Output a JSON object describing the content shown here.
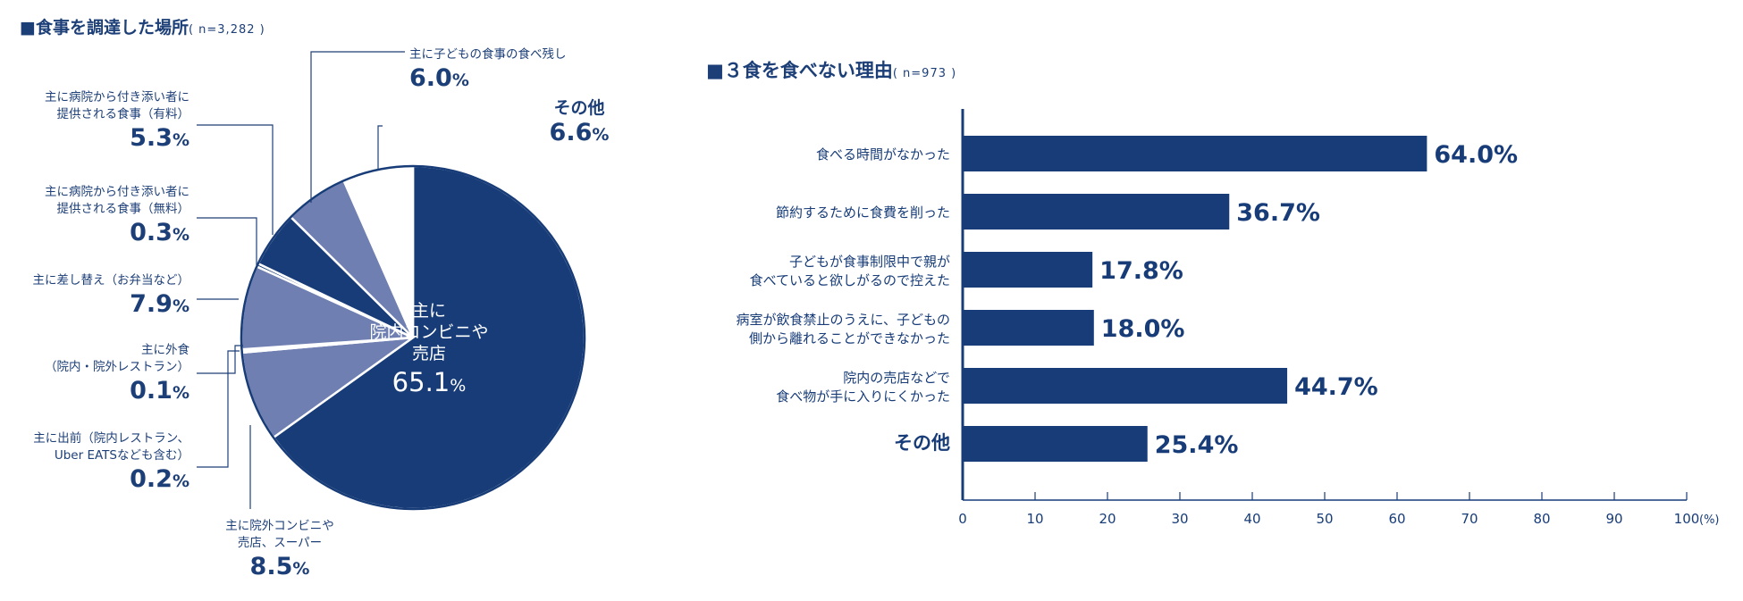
{
  "pie_title": "■食事を調達した場所",
  "pie_n": "( n=3,282 )",
  "bar_title": "■３食を食べない理由",
  "bar_n": "( n=973 )",
  "colors": {
    "dark": "#173c78",
    "mid": "#6f7fb2",
    "white": "#ffffff",
    "text": "#1d3f78"
  },
  "chart_data": [
    {
      "type": "pie",
      "slices": [
        {
          "label": "主に院内コンビニや売店",
          "value": 65.1,
          "pct_text": "65.1%",
          "color": "#173c78"
        },
        {
          "label": "主に院外コンビニや売店、スーパー",
          "value": 8.5,
          "pct_text": "8.5%",
          "color": "#6f7fb2"
        },
        {
          "label": "主に出前（院内レストラン、Uber EATSなども含む）",
          "value": 0.2,
          "pct_text": "0.2%",
          "color": "#173c78"
        },
        {
          "label": "主に外食（院内・院外レストラン）",
          "value": 0.1,
          "pct_text": "0.1%",
          "color": "#6f7fb2"
        },
        {
          "label": "主に差し替え（お弁当など）",
          "value": 7.9,
          "pct_text": "7.9%",
          "color": "#6f7fb2"
        },
        {
          "label": "主に病院から付き添い者に提供される食事（無料）",
          "value": 0.3,
          "pct_text": "0.3%",
          "color": "#173c78"
        },
        {
          "label": "主に病院から付き添い者に提供される食事（有料）",
          "value": 5.3,
          "pct_text": "5.3%",
          "color": "#173c78"
        },
        {
          "label": "主に子どもの食事の食べ残し",
          "value": 6.0,
          "pct_text": "6.0%",
          "color": "#6f7fb2"
        },
        {
          "label": "その他",
          "value": 6.6,
          "pct_text": "6.6%",
          "color": "#ffffff"
        }
      ]
    },
    {
      "type": "bar",
      "orientation": "horizontal",
      "categories": [
        "食べる時間がなかった",
        "節約するために食費を削った",
        "子どもが食事制限中で親が食べていると欲しがるので控えた",
        "病室が飲食禁止のうえに、子どもの側から離れることができなかった",
        "院内の売店などで食べ物が手に入りにくかった",
        "その他"
      ],
      "values": [
        64.0,
        36.7,
        17.8,
        18.0,
        44.7,
        25.4
      ],
      "xlim": [
        0,
        100
      ],
      "xticks": [
        "0",
        "10",
        "20",
        "30",
        "40",
        "50",
        "60",
        "70",
        "80",
        "90",
        "100"
      ],
      "xunit": "(%)",
      "color": "#173c78"
    }
  ],
  "pie_labels": {
    "main": {
      "line1": "主に",
      "line2": "院内コンビニや",
      "line3": "売店",
      "pct": "65.1",
      "unit": "%"
    },
    "outside": {
      "line1": "主に院外コンビニや",
      "line2": "売店、スーパー",
      "pct": "8.5",
      "unit": "%"
    },
    "delivery": {
      "line1": "主に出前（院内レストラン、",
      "line2": "Uber EATSなども含む）",
      "pct": "0.2",
      "unit": "%"
    },
    "eatout": {
      "line1": "主に外食",
      "line2": "（院内・院外レストラン）",
      "pct": "0.1",
      "unit": "%"
    },
    "replace": {
      "line1": "主に差し替え（お弁当など）",
      "pct": "7.9",
      "unit": "%"
    },
    "free": {
      "line1": "主に病院から付き添い者に",
      "line2": "提供される食事（無料）",
      "pct": "0.3",
      "unit": "%"
    },
    "paid": {
      "line1": "主に病院から付き添い者に",
      "line2": "提供される食事（有料）",
      "pct": "5.3",
      "unit": "%"
    },
    "leftover": {
      "line1": "主に子どもの食事の食べ残し",
      "pct": "6.0",
      "unit": "%"
    },
    "other": {
      "line1": "その他",
      "pct": "6.6",
      "unit": "%"
    }
  },
  "bar_labels": [
    {
      "line1": "食べる時間がなかった",
      "line2": "",
      "pct": "64.0%"
    },
    {
      "line1": "節約するために食費を削った",
      "line2": "",
      "pct": "36.7%"
    },
    {
      "line1": "子どもが食事制限中で親が",
      "line2": "食べていると欲しがるので控えた",
      "pct": "17.8%"
    },
    {
      "line1": "病室が飲食禁止のうえに、子どもの",
      "line2": "側から離れることができなかった",
      "pct": "18.0%"
    },
    {
      "line1": "院内の売店などで",
      "line2": "食べ物が手に入りにくかった",
      "pct": "44.7%"
    },
    {
      "line1": "その他",
      "line2": "",
      "pct": "25.4%"
    }
  ]
}
